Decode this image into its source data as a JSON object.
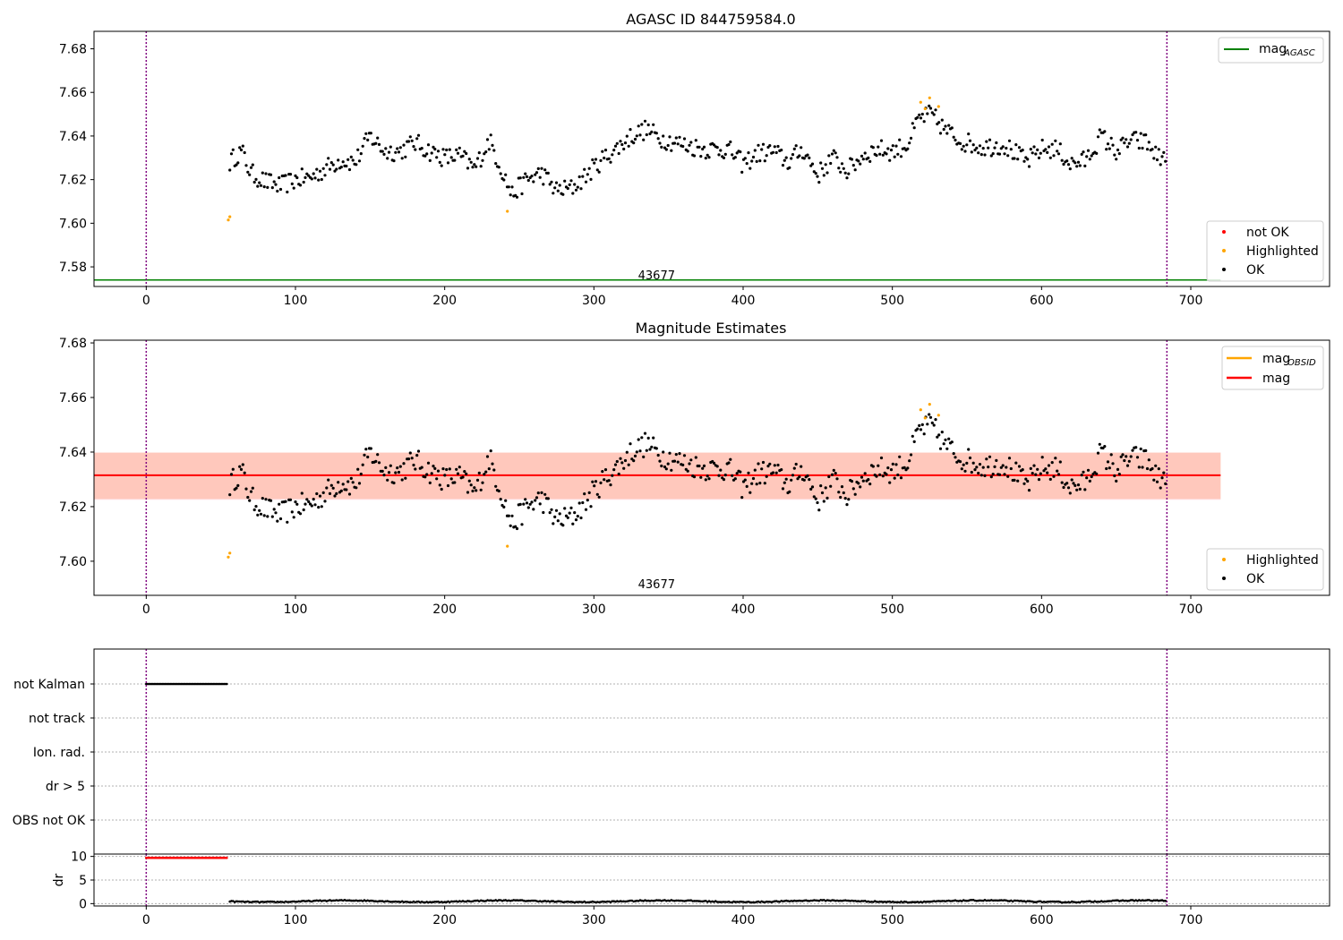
{
  "figure": {
    "colors": {
      "ok": "#000000",
      "not_ok": "#ff0000",
      "highlighted": "#ffa500",
      "agasc_line": "#008000",
      "obsid_line": "#ffa500",
      "mag_line": "#ff0000",
      "mag_band": "#ffc0cb",
      "obsid_band": "#ffa07a",
      "boundary": "#800080",
      "grid": "#b0b0b0"
    }
  },
  "chart_data": [
    {
      "id": "agasc",
      "type": "scatter",
      "title": "AGASC ID 844759584.0",
      "xlim": [
        -35,
        793
      ],
      "ylim": [
        7.571,
        7.688
      ],
      "xticks": [
        0,
        100,
        200,
        300,
        400,
        500,
        600,
        700
      ],
      "yticks": [
        7.58,
        7.6,
        7.62,
        7.64,
        7.66,
        7.68
      ],
      "ytick_labels": [
        "7.58",
        "7.60",
        "7.62",
        "7.64",
        "7.66",
        "7.68"
      ],
      "obsid_label": "43677",
      "obsid_label_x": 342,
      "boundaries_x": [
        0,
        684
      ],
      "hlines": [
        {
          "name": "mag_AGASC",
          "y": 7.574,
          "x": [
            -35,
            720
          ],
          "color": "#008000"
        }
      ],
      "legend_top": [
        {
          "label": "mag",
          "subscript": "AGASC",
          "kind": "line",
          "color": "#008000"
        }
      ],
      "legend_bottom": [
        {
          "label": "not OK",
          "kind": "dot",
          "color": "#ff0000"
        },
        {
          "label": "Highlighted",
          "kind": "dot",
          "color": "#ffa500"
        },
        {
          "label": "OK",
          "kind": "dot",
          "color": "#000000"
        }
      ],
      "highlighted_points": [
        [
          55,
          7.6015
        ],
        [
          56,
          7.603
        ],
        [
          242,
          7.6055
        ],
        [
          519,
          7.6555
        ],
        [
          525,
          7.6575
        ],
        [
          531,
          7.6535
        ],
        [
          522,
          7.6525
        ]
      ],
      "ok_series": {
        "x_start": 56,
        "x_end": 684,
        "step": 1.1,
        "anchors": [
          [
            56,
            7.628
          ],
          [
            60,
            7.631
          ],
          [
            64,
            7.633
          ],
          [
            70,
            7.623
          ],
          [
            80,
            7.619
          ],
          [
            90,
            7.617
          ],
          [
            100,
            7.62
          ],
          [
            110,
            7.621
          ],
          [
            120,
            7.625
          ],
          [
            130,
            7.629
          ],
          [
            140,
            7.628
          ],
          [
            150,
            7.64
          ],
          [
            160,
            7.633
          ],
          [
            170,
            7.633
          ],
          [
            180,
            7.637
          ],
          [
            190,
            7.633
          ],
          [
            200,
            7.63
          ],
          [
            210,
            7.631
          ],
          [
            220,
            7.625
          ],
          [
            230,
            7.638
          ],
          [
            238,
            7.625
          ],
          [
            245,
            7.613
          ],
          [
            255,
            7.62
          ],
          [
            265,
            7.623
          ],
          [
            275,
            7.615
          ],
          [
            285,
            7.616
          ],
          [
            295,
            7.622
          ],
          [
            305,
            7.629
          ],
          [
            315,
            7.634
          ],
          [
            325,
            7.64
          ],
          [
            335,
            7.643
          ],
          [
            345,
            7.639
          ],
          [
            360,
            7.636
          ],
          [
            375,
            7.634
          ],
          [
            390,
            7.634
          ],
          [
            400,
            7.627
          ],
          [
            410,
            7.632
          ],
          [
            420,
            7.633
          ],
          [
            430,
            7.628
          ],
          [
            440,
            7.634
          ],
          [
            450,
            7.622
          ],
          [
            460,
            7.63
          ],
          [
            470,
            7.624
          ],
          [
            480,
            7.631
          ],
          [
            490,
            7.634
          ],
          [
            500,
            7.633
          ],
          [
            510,
            7.636
          ],
          [
            518,
            7.648
          ],
          [
            526,
            7.65
          ],
          [
            535,
            7.643
          ],
          [
            545,
            7.638
          ],
          [
            560,
            7.635
          ],
          [
            575,
            7.636
          ],
          [
            590,
            7.628
          ],
          [
            600,
            7.634
          ],
          [
            610,
            7.634
          ],
          [
            620,
            7.627
          ],
          [
            630,
            7.629
          ],
          [
            640,
            7.64
          ],
          [
            650,
            7.633
          ],
          [
            660,
            7.638
          ],
          [
            670,
            7.637
          ],
          [
            680,
            7.629
          ],
          [
            684,
            7.633
          ]
        ]
      }
    },
    {
      "id": "estimates",
      "type": "scatter",
      "title": "Magnitude Estimates",
      "xlim": [
        -35,
        793
      ],
      "ylim": [
        7.5875,
        7.681
      ],
      "xticks": [
        0,
        100,
        200,
        300,
        400,
        500,
        600,
        700
      ],
      "yticks": [
        7.6,
        7.62,
        7.64,
        7.66,
        7.68
      ],
      "ytick_labels": [
        "7.60",
        "7.62",
        "7.64",
        "7.66",
        "7.68"
      ],
      "obsid_label": "43677",
      "obsid_label_x": 342,
      "boundaries_x": [
        0,
        684
      ],
      "hlines": [
        {
          "name": "mag",
          "y": 7.6315,
          "x": [
            -35,
            720
          ],
          "color": "#ff0000"
        }
      ],
      "bands": [
        {
          "name": "mag",
          "y": [
            7.6225,
            7.6398
          ],
          "x": [
            -35,
            720
          ],
          "color": "#ffc0cb",
          "opacity": 0.45
        },
        {
          "name": "mag_OBSID",
          "y": [
            7.6228,
            7.6398
          ],
          "x": [
            -35,
            720
          ],
          "color": "#ffa07a",
          "opacity": 0.4
        }
      ],
      "legend_top": [
        {
          "label": "mag",
          "subscript": "OBSID",
          "kind": "line",
          "color": "#ffa500"
        },
        {
          "label": "mag",
          "subscript": "",
          "kind": "line",
          "color": "#ff0000"
        }
      ],
      "legend_bottom": [
        {
          "label": "Highlighted",
          "kind": "dot",
          "color": "#ffa500"
        },
        {
          "label": "OK",
          "kind": "dot",
          "color": "#000000"
        }
      ],
      "same_points_as": "agasc"
    },
    {
      "id": "flags",
      "type": "scatter",
      "title": "",
      "xlim": [
        -35,
        793
      ],
      "categories": [
        "not Kalman",
        "not track",
        "Ion. rad.",
        "dr > 5",
        "OBS not OK"
      ],
      "boundaries_x": [
        0,
        684
      ],
      "rows": [
        {
          "category": "not Kalman",
          "x_range": [
            0,
            54
          ],
          "step": 0.9,
          "color": "#000000"
        }
      ]
    },
    {
      "id": "dr",
      "type": "scatter",
      "ylabel": "dr",
      "xlim": [
        -35,
        793
      ],
      "ylim": [
        -0.5,
        10.5
      ],
      "xticks": [
        0,
        100,
        200,
        300,
        400,
        500,
        600,
        700
      ],
      "yticks": [
        0,
        5,
        10
      ],
      "ytick_labels": [
        "0",
        "5",
        "10"
      ],
      "boundaries_x": [
        0,
        684
      ],
      "clipped_points": {
        "x_range": [
          0,
          54
        ],
        "step": 0.9,
        "y": 9.7,
        "color": "#ff0000"
      },
      "ok_series": {
        "x_range": [
          56,
          684
        ],
        "step": 1.1,
        "baseline": 0.4,
        "amplitude": 0.35,
        "color": "#000000"
      }
    }
  ]
}
